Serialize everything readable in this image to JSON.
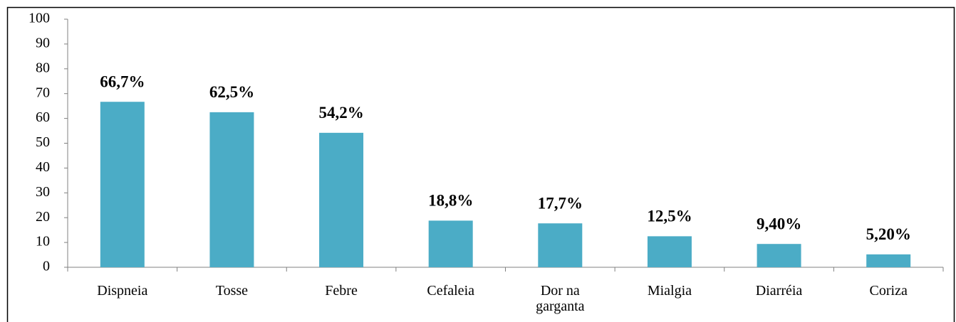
{
  "chart_data": {
    "type": "bar",
    "categories": [
      "Dispneia",
      "Tosse",
      "Febre",
      "Cefaleia",
      "Dor na garganta",
      "Mialgia",
      "Diarréia",
      "Coriza"
    ],
    "values": [
      66.7,
      62.5,
      54.2,
      18.8,
      17.7,
      12.5,
      9.4,
      5.2
    ],
    "value_labels": [
      "66,7%",
      "62,5%",
      "54,2%",
      "18,8%",
      "17,7%",
      "12,5%",
      "9,40%",
      "5,20%"
    ],
    "color": "#4bacc6",
    "ylim": [
      0,
      100
    ],
    "yticks": [
      0,
      10,
      20,
      30,
      40,
      50,
      60,
      70,
      80,
      90,
      100
    ],
    "grid": false
  }
}
